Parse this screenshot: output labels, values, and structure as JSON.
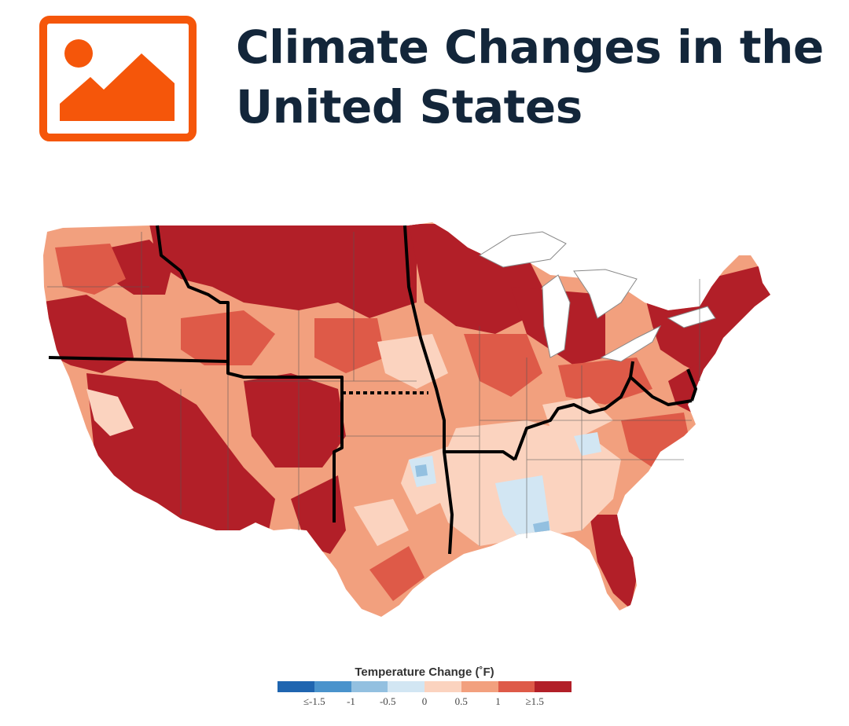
{
  "header": {
    "title": "Climate Changes in the United States",
    "logo_icon": "image-placeholder-icon",
    "logo_color": "#f5560a"
  },
  "map": {
    "subject": "Temperature change across the contiguous United States",
    "colors": {
      "le_neg1_5": "#1f65b0",
      "neg1": "#4a93cc",
      "neg0_5": "#93c0e0",
      "zero": "#d2e6f3",
      "pos0_5": "#fbd3bf",
      "pos1": "#f2a07e",
      "pos1_5": "#de5a48",
      "ge_pos1_5": "#b21f28",
      "lakes": "#ffffff",
      "borders": "#000000"
    }
  },
  "legend": {
    "title": "Temperature Change (˚F)",
    "ticks": [
      "≤-1.5",
      "-1",
      "-0.5",
      "0",
      "0.5",
      "1",
      "≥1.5"
    ],
    "swatches": [
      "#1f65b0",
      "#4a93cc",
      "#93c0e0",
      "#d2e6f3",
      "#fbd3bf",
      "#f2a07e",
      "#de5a48",
      "#b21f28"
    ]
  }
}
